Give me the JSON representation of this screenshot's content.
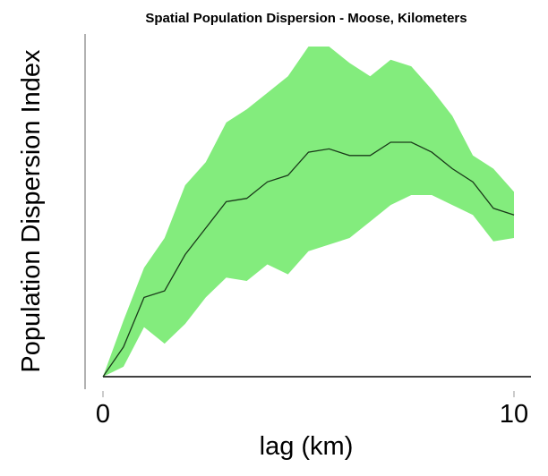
{
  "chart_data": {
    "type": "area",
    "title": "Spatial Population Dispersion - Moose, Kilometers",
    "xlabel": "lag (km)",
    "ylabel": "Population Dispersion Index",
    "xlim": [
      0,
      10
    ],
    "ylim": [
      0,
      1
    ],
    "xticks": [
      "0",
      "10"
    ],
    "grid": false,
    "colors": {
      "band_fill": "#83ec7d",
      "mean_line": "#1a3a1a",
      "axis": "#000000",
      "left_spine": "#999999"
    },
    "x": [
      0,
      0.5,
      1,
      1.5,
      2,
      2.5,
      3,
      3.5,
      4,
      4.5,
      5,
      5.5,
      6,
      6.5,
      7,
      7.5,
      8,
      8.5,
      9,
      9.5,
      10
    ],
    "series": [
      {
        "role": "upper",
        "values": [
          0.0,
          0.17,
          0.33,
          0.42,
          0.58,
          0.65,
          0.77,
          0.81,
          0.86,
          0.91,
          1.0,
          1.0,
          0.95,
          0.91,
          0.96,
          0.94,
          0.87,
          0.79,
          0.67,
          0.63,
          0.56
        ]
      },
      {
        "role": "mean",
        "values": [
          0.0,
          0.09,
          0.24,
          0.26,
          0.37,
          0.45,
          0.53,
          0.54,
          0.59,
          0.61,
          0.68,
          0.69,
          0.67,
          0.67,
          0.71,
          0.71,
          0.68,
          0.63,
          0.59,
          0.51,
          0.49
        ]
      },
      {
        "role": "lower",
        "values": [
          0.0,
          0.03,
          0.15,
          0.1,
          0.16,
          0.24,
          0.3,
          0.29,
          0.34,
          0.31,
          0.38,
          0.4,
          0.42,
          0.47,
          0.52,
          0.55,
          0.55,
          0.52,
          0.49,
          0.41,
          0.42
        ]
      }
    ]
  }
}
